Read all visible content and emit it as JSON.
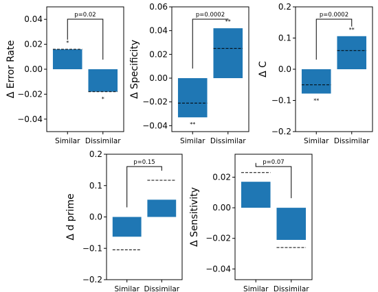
{
  "chart_data": [
    {
      "type": "bar",
      "categories": [
        "Similar",
        "Dissimilar"
      ],
      "ylabel": "Δ Error Rate",
      "ylim": [
        -0.05,
        0.05
      ],
      "ticks": [
        0.04,
        0.02,
        0.0,
        -0.02,
        -0.04
      ],
      "tick_labels": [
        "0.04",
        "0.02",
        "0.00",
        "−0.02",
        "−0.04"
      ],
      "values": [
        0.016,
        -0.018
      ],
      "reference": [
        0.016,
        -0.018
      ],
      "significance": [
        "*",
        "*"
      ],
      "comparison": "p=0.02",
      "bar_color": "#1f77b4"
    },
    {
      "type": "bar",
      "categories": [
        "Similar",
        "Dissimilar"
      ],
      "ylabel": "Δ Specificity",
      "ylim": [
        -0.045,
        0.06
      ],
      "ticks": [
        0.06,
        0.04,
        0.02,
        0.0,
        -0.02,
        -0.04
      ],
      "tick_labels": [
        "0.06",
        "0.04",
        "0.02",
        "0.00",
        "−0.02",
        "−0.04"
      ],
      "values": [
        -0.033,
        0.042
      ],
      "reference": [
        -0.021,
        0.025
      ],
      "significance": [
        "**",
        "**"
      ],
      "comparison": "p=0.0002",
      "bar_color": "#1f77b4"
    },
    {
      "type": "bar",
      "categories": [
        "Similar",
        "Dissimilar"
      ],
      "ylabel": "Δ C",
      "ylim": [
        -0.2,
        0.2
      ],
      "ticks": [
        0.2,
        0.1,
        0.0,
        -0.1,
        -0.2
      ],
      "tick_labels": [
        "0.2",
        "0.1",
        "0.0",
        "−0.1",
        "−0.2"
      ],
      "values": [
        -0.078,
        0.106
      ],
      "reference": [
        -0.05,
        0.06
      ],
      "significance": [
        "**",
        "**"
      ],
      "comparison": "p=0.0002",
      "bar_color": "#1f77b4"
    },
    {
      "type": "bar",
      "categories": [
        "Similar",
        "Dissimilar"
      ],
      "ylabel": "Δ d prime",
      "ylim": [
        -0.2,
        0.2
      ],
      "ticks": [
        0.2,
        0.1,
        0.0,
        -0.1,
        -0.2
      ],
      "tick_labels": [
        "0.2",
        "0.1",
        "0.0",
        "−0.1",
        "−0.2"
      ],
      "values": [
        -0.063,
        0.055
      ],
      "reference": [
        -0.105,
        0.117
      ],
      "significance": [
        "",
        ""
      ],
      "comparison": "p=0.15",
      "bar_color": "#1f77b4"
    },
    {
      "type": "bar",
      "categories": [
        "Similar",
        "Dissimilar"
      ],
      "ylabel": "Δ Sensitivity",
      "ylim": [
        -0.047,
        0.035
      ],
      "ticks": [
        0.02,
        0.0,
        -0.02,
        -0.04
      ],
      "tick_labels": [
        "0.02",
        "0.00",
        "−0.02",
        "−0.04"
      ],
      "values": [
        0.017,
        -0.021
      ],
      "reference": [
        0.023,
        -0.026
      ],
      "significance": [
        "",
        ""
      ],
      "comparison": "p=0.07",
      "bar_color": "#1f77b4"
    }
  ]
}
